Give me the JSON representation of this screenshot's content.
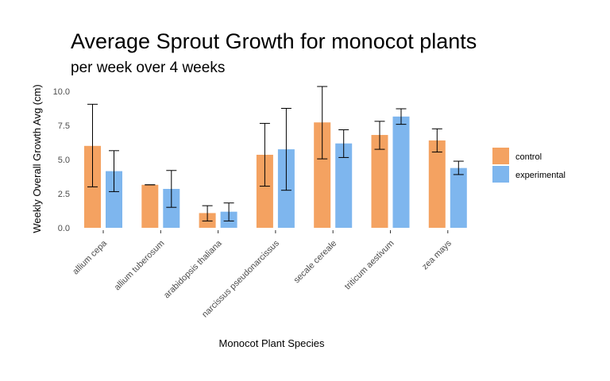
{
  "chart_data": {
    "type": "bar",
    "title": "Average Sprout Growth for monocot plants",
    "subtitle": "per week over 4 weeks",
    "xlabel": "Monocot Plant Species",
    "ylabel": "Weekly Overall Growth Avg (cm)",
    "ylim": [
      0,
      10.5
    ],
    "yticks": [
      0.0,
      2.5,
      5.0,
      7.5,
      10.0
    ],
    "ytick_labels": [
      "0.0",
      "2.5",
      "5.0",
      "7.5",
      "10.0"
    ],
    "grid": false,
    "legend_position": "right",
    "categories": [
      "allium cepa",
      "allium tuberosum",
      "arabidopsis thaliana",
      "narcissus pseudonarcissus",
      "secale cereale",
      "triticum aestivum",
      "zea mays"
    ],
    "series": [
      {
        "name": "control",
        "color": "#F4A261",
        "values": [
          6.0,
          3.15,
          1.08,
          5.35,
          7.72,
          6.8,
          6.4
        ],
        "error_low": [
          3.0,
          3.15,
          0.5,
          3.05,
          5.05,
          5.75,
          5.55
        ],
        "error_high": [
          9.05,
          3.15,
          1.62,
          7.65,
          10.35,
          7.8,
          7.25
        ]
      },
      {
        "name": "experimental",
        "color": "#7EB6EE",
        "values": [
          4.15,
          2.85,
          1.18,
          5.75,
          6.18,
          8.15,
          4.38
        ],
        "error_low": [
          2.65,
          1.5,
          0.5,
          2.75,
          5.15,
          7.58,
          3.9
        ],
        "error_high": [
          5.65,
          4.2,
          1.82,
          8.75,
          7.18,
          8.72,
          4.88
        ]
      }
    ]
  }
}
